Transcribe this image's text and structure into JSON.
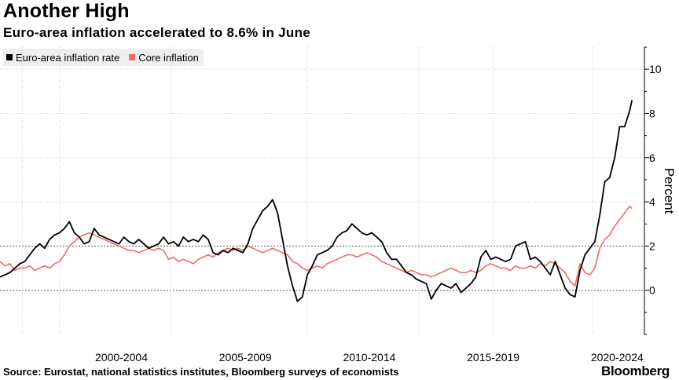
{
  "chart_data": {
    "type": "line",
    "title": "Another High",
    "subtitle": "Euro-area inflation accelerated to 8.6% in June",
    "xlabel": "",
    "ylabel": "Percent",
    "ylim": [
      -2,
      11
    ],
    "yticks": [
      0,
      2,
      4,
      6,
      8,
      10
    ],
    "y_axis_side": "right",
    "x_range": [
      1997.6,
      2023.6
    ],
    "x_ticks": [
      {
        "label": "2000-2004",
        "x": 2002.5
      },
      {
        "label": "2005-2009",
        "x": 2007.5
      },
      {
        "label": "2010-2014",
        "x": 2012.5
      },
      {
        "label": "2015-2019",
        "x": 2017.5
      },
      {
        "label": "2020-2024",
        "x": 2022.5
      }
    ],
    "x_gridlines": [
      1998.5,
      2000,
      2004.5,
      2010,
      2014.5,
      2017.5,
      2021.5
    ],
    "grid": true,
    "legend_position": "top-left",
    "series": [
      {
        "name": "Euro-area inflation rate",
        "color": "#000000",
        "points": [
          [
            1997.6,
            0.6
          ],
          [
            1997.8,
            0.7
          ],
          [
            1998.0,
            0.8
          ],
          [
            1998.2,
            1.0
          ],
          [
            1998.4,
            1.2
          ],
          [
            1998.6,
            1.3
          ],
          [
            1998.8,
            1.6
          ],
          [
            1999.0,
            1.9
          ],
          [
            1999.2,
            2.1
          ],
          [
            1999.4,
            1.9
          ],
          [
            1999.6,
            2.3
          ],
          [
            1999.8,
            2.5
          ],
          [
            2000.0,
            2.6
          ],
          [
            2000.2,
            2.8
          ],
          [
            2000.4,
            3.1
          ],
          [
            2000.6,
            2.6
          ],
          [
            2000.8,
            2.4
          ],
          [
            2001.0,
            2.1
          ],
          [
            2001.2,
            2.2
          ],
          [
            2001.4,
            2.8
          ],
          [
            2001.6,
            2.5
          ],
          [
            2001.8,
            2.4
          ],
          [
            2002.0,
            2.3
          ],
          [
            2002.2,
            2.2
          ],
          [
            2002.4,
            2.1
          ],
          [
            2002.6,
            2.4
          ],
          [
            2002.8,
            2.2
          ],
          [
            2003.0,
            2.1
          ],
          [
            2003.2,
            2.3
          ],
          [
            2003.4,
            2.1
          ],
          [
            2003.6,
            1.9
          ],
          [
            2003.8,
            2.0
          ],
          [
            2004.0,
            2.1
          ],
          [
            2004.2,
            2.4
          ],
          [
            2004.4,
            2.1
          ],
          [
            2004.6,
            2.2
          ],
          [
            2004.8,
            2.0
          ],
          [
            2005.0,
            2.4
          ],
          [
            2005.2,
            2.2
          ],
          [
            2005.4,
            2.3
          ],
          [
            2005.6,
            2.2
          ],
          [
            2005.8,
            2.5
          ],
          [
            2006.0,
            2.3
          ],
          [
            2006.2,
            1.7
          ],
          [
            2006.4,
            1.6
          ],
          [
            2006.6,
            1.8
          ],
          [
            2006.8,
            1.7
          ],
          [
            2007.0,
            1.9
          ],
          [
            2007.2,
            1.8
          ],
          [
            2007.4,
            1.7
          ],
          [
            2007.6,
            2.1
          ],
          [
            2007.8,
            2.8
          ],
          [
            2008.0,
            3.2
          ],
          [
            2008.2,
            3.6
          ],
          [
            2008.4,
            3.8
          ],
          [
            2008.6,
            4.1
          ],
          [
            2008.8,
            3.5
          ],
          [
            2009.0,
            2.3
          ],
          [
            2009.2,
            1.1
          ],
          [
            2009.4,
            0.2
          ],
          [
            2009.6,
            -0.5
          ],
          [
            2009.8,
            -0.3
          ],
          [
            2010.0,
            0.7
          ],
          [
            2010.2,
            1.1
          ],
          [
            2010.4,
            1.6
          ],
          [
            2010.6,
            1.7
          ],
          [
            2010.8,
            1.8
          ],
          [
            2011.0,
            2.0
          ],
          [
            2011.2,
            2.4
          ],
          [
            2011.4,
            2.6
          ],
          [
            2011.6,
            2.7
          ],
          [
            2011.8,
            3.0
          ],
          [
            2012.0,
            2.8
          ],
          [
            2012.2,
            2.6
          ],
          [
            2012.4,
            2.5
          ],
          [
            2012.6,
            2.6
          ],
          [
            2012.8,
            2.4
          ],
          [
            2013.0,
            2.2
          ],
          [
            2013.2,
            1.7
          ],
          [
            2013.4,
            1.4
          ],
          [
            2013.6,
            1.4
          ],
          [
            2013.8,
            1.1
          ],
          [
            2014.0,
            0.8
          ],
          [
            2014.2,
            0.7
          ],
          [
            2014.4,
            0.5
          ],
          [
            2014.6,
            0.4
          ],
          [
            2014.8,
            0.3
          ],
          [
            2015.0,
            -0.4
          ],
          [
            2015.2,
            0.0
          ],
          [
            2015.4,
            0.3
          ],
          [
            2015.6,
            0.2
          ],
          [
            2015.8,
            0.1
          ],
          [
            2016.0,
            0.3
          ],
          [
            2016.2,
            -0.1
          ],
          [
            2016.4,
            0.1
          ],
          [
            2016.6,
            0.3
          ],
          [
            2016.8,
            0.6
          ],
          [
            2017.0,
            1.5
          ],
          [
            2017.2,
            1.8
          ],
          [
            2017.4,
            1.4
          ],
          [
            2017.6,
            1.5
          ],
          [
            2017.8,
            1.4
          ],
          [
            2018.0,
            1.3
          ],
          [
            2018.2,
            1.4
          ],
          [
            2018.4,
            2.0
          ],
          [
            2018.6,
            2.1
          ],
          [
            2018.8,
            2.2
          ],
          [
            2019.0,
            1.4
          ],
          [
            2019.2,
            1.5
          ],
          [
            2019.4,
            1.3
          ],
          [
            2019.6,
            1.0
          ],
          [
            2019.8,
            0.7
          ],
          [
            2020.0,
            1.3
          ],
          [
            2020.2,
            0.7
          ],
          [
            2020.4,
            0.1
          ],
          [
            2020.6,
            -0.2
          ],
          [
            2020.8,
            -0.3
          ],
          [
            2021.0,
            0.9
          ],
          [
            2021.2,
            1.6
          ],
          [
            2021.4,
            1.9
          ],
          [
            2021.6,
            2.2
          ],
          [
            2021.8,
            3.4
          ],
          [
            2022.0,
            4.9
          ],
          [
            2022.2,
            5.1
          ],
          [
            2022.4,
            6.0
          ],
          [
            2022.6,
            7.4
          ],
          [
            2022.8,
            7.4
          ],
          [
            2023.0,
            8.1
          ],
          [
            2023.1,
            8.6
          ]
        ]
      },
      {
        "name": "Core inflation",
        "color": "#f06a6a",
        "points": [
          [
            1997.6,
            1.3
          ],
          [
            1997.8,
            1.1
          ],
          [
            1998.0,
            1.2
          ],
          [
            1998.2,
            0.9
          ],
          [
            1998.4,
            1.0
          ],
          [
            1998.6,
            1.0
          ],
          [
            1998.8,
            1.1
          ],
          [
            1999.0,
            0.9
          ],
          [
            1999.2,
            1.0
          ],
          [
            1999.4,
            1.1
          ],
          [
            1999.6,
            1.0
          ],
          [
            1999.8,
            1.2
          ],
          [
            2000.0,
            1.3
          ],
          [
            2000.2,
            1.6
          ],
          [
            2000.4,
            2.0
          ],
          [
            2000.6,
            2.2
          ],
          [
            2000.8,
            2.4
          ],
          [
            2001.0,
            2.5
          ],
          [
            2001.2,
            2.6
          ],
          [
            2001.4,
            2.5
          ],
          [
            2001.6,
            2.4
          ],
          [
            2001.8,
            2.3
          ],
          [
            2002.0,
            2.2
          ],
          [
            2002.2,
            2.1
          ],
          [
            2002.4,
            2.0
          ],
          [
            2002.6,
            1.9
          ],
          [
            2002.8,
            1.8
          ],
          [
            2003.0,
            1.8
          ],
          [
            2003.2,
            1.7
          ],
          [
            2003.4,
            1.8
          ],
          [
            2003.6,
            1.9
          ],
          [
            2003.8,
            1.8
          ],
          [
            2004.0,
            1.9
          ],
          [
            2004.2,
            1.8
          ],
          [
            2004.4,
            1.4
          ],
          [
            2004.6,
            1.5
          ],
          [
            2004.8,
            1.3
          ],
          [
            2005.0,
            1.4
          ],
          [
            2005.2,
            1.3
          ],
          [
            2005.4,
            1.2
          ],
          [
            2005.6,
            1.4
          ],
          [
            2005.8,
            1.5
          ],
          [
            2006.0,
            1.6
          ],
          [
            2006.2,
            1.5
          ],
          [
            2006.4,
            1.7
          ],
          [
            2006.6,
            1.8
          ],
          [
            2006.8,
            1.9
          ],
          [
            2007.0,
            1.8
          ],
          [
            2007.2,
            1.9
          ],
          [
            2007.4,
            1.8
          ],
          [
            2007.6,
            2.0
          ],
          [
            2007.8,
            1.9
          ],
          [
            2008.0,
            1.8
          ],
          [
            2008.2,
            1.7
          ],
          [
            2008.4,
            1.8
          ],
          [
            2008.6,
            1.9
          ],
          [
            2008.8,
            1.8
          ],
          [
            2009.0,
            1.7
          ],
          [
            2009.2,
            1.6
          ],
          [
            2009.4,
            1.3
          ],
          [
            2009.6,
            1.2
          ],
          [
            2009.8,
            1.0
          ],
          [
            2010.0,
            0.9
          ],
          [
            2010.2,
            1.0
          ],
          [
            2010.4,
            1.1
          ],
          [
            2010.6,
            1.0
          ],
          [
            2010.8,
            1.2
          ],
          [
            2011.0,
            1.3
          ],
          [
            2011.2,
            1.4
          ],
          [
            2011.4,
            1.5
          ],
          [
            2011.6,
            1.6
          ],
          [
            2011.8,
            1.6
          ],
          [
            2012.0,
            1.5
          ],
          [
            2012.2,
            1.6
          ],
          [
            2012.4,
            1.7
          ],
          [
            2012.6,
            1.6
          ],
          [
            2012.8,
            1.5
          ],
          [
            2013.0,
            1.3
          ],
          [
            2013.2,
            1.2
          ],
          [
            2013.4,
            1.1
          ],
          [
            2013.6,
            1.0
          ],
          [
            2013.8,
            0.9
          ],
          [
            2014.0,
            0.8
          ],
          [
            2014.2,
            0.9
          ],
          [
            2014.4,
            0.8
          ],
          [
            2014.6,
            0.7
          ],
          [
            2014.8,
            0.7
          ],
          [
            2015.0,
            0.6
          ],
          [
            2015.2,
            0.7
          ],
          [
            2015.4,
            0.8
          ],
          [
            2015.6,
            0.9
          ],
          [
            2015.8,
            1.0
          ],
          [
            2016.0,
            0.9
          ],
          [
            2016.2,
            0.8
          ],
          [
            2016.4,
            0.8
          ],
          [
            2016.6,
            0.9
          ],
          [
            2016.8,
            0.8
          ],
          [
            2017.0,
            0.9
          ],
          [
            2017.2,
            1.1
          ],
          [
            2017.4,
            1.2
          ],
          [
            2017.6,
            1.1
          ],
          [
            2017.8,
            1.0
          ],
          [
            2018.0,
            1.0
          ],
          [
            2018.2,
            0.9
          ],
          [
            2018.4,
            1.1
          ],
          [
            2018.6,
            1.0
          ],
          [
            2018.8,
            1.0
          ],
          [
            2019.0,
            1.1
          ],
          [
            2019.2,
            1.0
          ],
          [
            2019.4,
            1.2
          ],
          [
            2019.6,
            1.1
          ],
          [
            2019.8,
            1.3
          ],
          [
            2020.0,
            1.2
          ],
          [
            2020.2,
            1.0
          ],
          [
            2020.4,
            0.8
          ],
          [
            2020.6,
            0.4
          ],
          [
            2020.8,
            0.2
          ],
          [
            2021.0,
            1.2
          ],
          [
            2021.2,
            0.8
          ],
          [
            2021.4,
            0.7
          ],
          [
            2021.6,
            1.0
          ],
          [
            2021.8,
            1.9
          ],
          [
            2022.0,
            2.3
          ],
          [
            2022.2,
            2.5
          ],
          [
            2022.4,
            2.9
          ],
          [
            2022.6,
            3.2
          ],
          [
            2022.8,
            3.5
          ],
          [
            2023.0,
            3.8
          ],
          [
            2023.1,
            3.7
          ]
        ]
      }
    ]
  },
  "footer": {
    "source": "Source: Eurostat, national statistics institutes, Bloomberg surveys of economists",
    "brand": "Bloomberg"
  }
}
